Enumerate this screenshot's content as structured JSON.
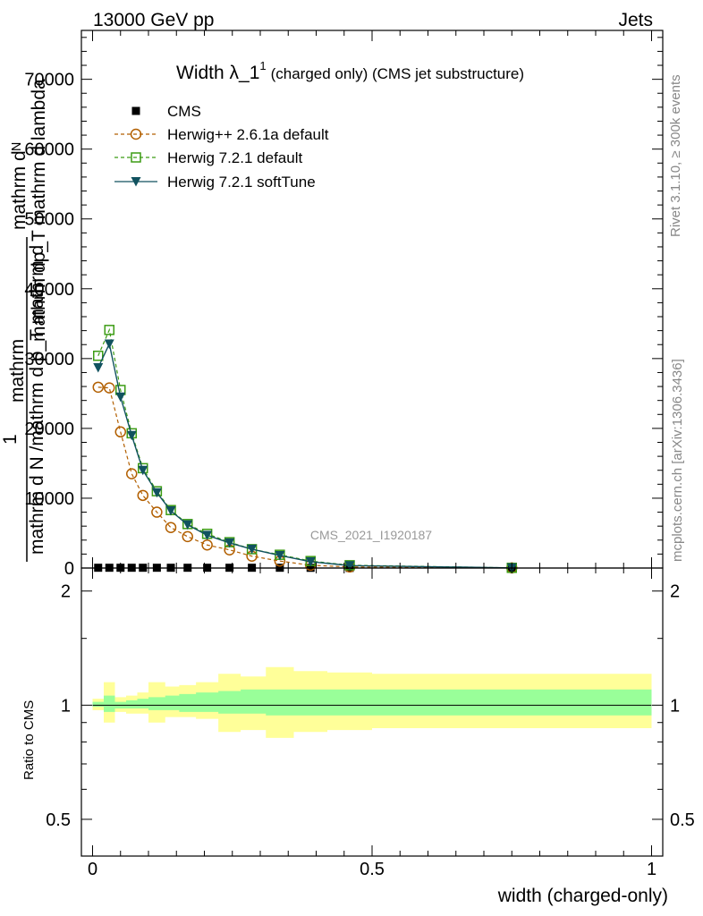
{
  "header": {
    "left": "13000 GeV pp",
    "right": "Jets"
  },
  "side_labels": {
    "rivet": "Rivet 3.1.10, ≥ 300k events",
    "mcplots": "mcplots.cern.ch [arXiv:1306.3436]"
  },
  "watermark": "CMS_2021_I1920187",
  "colors": {
    "cms": "#000000",
    "herwigpp": "#b25f00",
    "h721_default": "#3c9c14",
    "h721_soft": "#11525f",
    "band_inner": "#99ff99",
    "band_outer": "#ffff99"
  },
  "chart_data": [
    {
      "type": "line",
      "panel": "main",
      "title_main": "Width λ_1",
      "title_sup": "1",
      "title_rest": "(charged only) (CMS jet substructure)",
      "ylabel_top": "mathrm dᴺ",
      "ylabel_mid": "mathrm dp_T mathrm d lambda",
      "ylabel_bottom": "mathrm d N /mathrm d p_T mathrm d",
      "ylabel_one": "1",
      "ylabel_mathrm": "mathrm",
      "ylim": [
        0,
        77000
      ],
      "yticks": [
        0,
        10000,
        20000,
        30000,
        40000,
        50000,
        60000,
        70000
      ],
      "ytick_labels": [
        "0",
        "10000",
        "20000",
        "30000",
        "40000",
        "50000",
        "60000",
        "70000"
      ],
      "xlim": [
        -0.02,
        1.02
      ],
      "legend": [
        "CMS",
        "Herwig++ 2.6.1a default",
        "Herwig 7.2.1 default",
        "Herwig 7.2.1 softTune"
      ],
      "series": [
        {
          "name": "CMS",
          "marker": "square-filled",
          "x": [
            0.01,
            0.03,
            0.05,
            0.07,
            0.09,
            0.115,
            0.14,
            0.17,
            0.205,
            0.245,
            0.285,
            0.335,
            0.39,
            0.46,
            0.75
          ],
          "values": [
            40,
            40,
            40,
            40,
            40,
            40,
            40,
            40,
            40,
            40,
            40,
            40,
            30,
            20,
            5
          ]
        },
        {
          "name": "Herwig++ 2.6.1a default",
          "marker": "circle-open",
          "x": [
            0.01,
            0.03,
            0.05,
            0.07,
            0.09,
            0.115,
            0.14,
            0.17,
            0.205,
            0.245,
            0.285,
            0.335,
            0.39,
            0.46,
            0.75
          ],
          "values": [
            25900,
            25800,
            19500,
            13500,
            10400,
            8000,
            5800,
            4500,
            3300,
            2600,
            1700,
            1000,
            400,
            150,
            20
          ]
        },
        {
          "name": "Herwig 7.2.1 default",
          "marker": "square-open",
          "x": [
            0.01,
            0.03,
            0.05,
            0.07,
            0.09,
            0.115,
            0.14,
            0.17,
            0.205,
            0.245,
            0.285,
            0.335,
            0.39,
            0.46,
            0.75
          ],
          "values": [
            30400,
            34100,
            25500,
            19300,
            14300,
            11000,
            8300,
            6300,
            4900,
            3700,
            2700,
            1900,
            1000,
            400,
            30
          ]
        },
        {
          "name": "Herwig 7.2.1 softTune",
          "marker": "triangle-down-filled",
          "x": [
            0.01,
            0.03,
            0.05,
            0.07,
            0.09,
            0.115,
            0.14,
            0.17,
            0.205,
            0.245,
            0.285,
            0.335,
            0.39,
            0.46,
            0.75
          ],
          "values": [
            28700,
            32100,
            24500,
            19000,
            14000,
            10800,
            8200,
            6200,
            4700,
            3600,
            2700,
            1800,
            900,
            350,
            30
          ]
        }
      ]
    },
    {
      "type": "area",
      "panel": "ratio",
      "ylabel": "Ratio to CMS",
      "xlabel": "width (charged-only)",
      "ylim": [
        0.4,
        2.3
      ],
      "log_y": true,
      "xlim": [
        -0.02,
        1.02
      ],
      "yticks": [
        0.5,
        1,
        2
      ],
      "ytick_labels": [
        "0.5",
        "1",
        "2"
      ],
      "xticks": [
        0,
        0.5,
        1
      ],
      "xtick_labels": [
        "0",
        "0.5",
        "1"
      ],
      "reference": 1,
      "bins": [
        0,
        0.02,
        0.04,
        0.06,
        0.08,
        0.1,
        0.13,
        0.155,
        0.185,
        0.225,
        0.265,
        0.31,
        0.36,
        0.42,
        0.5,
        1.0
      ],
      "inner_lo": [
        0.99,
        0.96,
        0.98,
        0.98,
        0.98,
        0.97,
        0.97,
        0.96,
        0.96,
        0.95,
        0.95,
        0.94,
        0.94,
        0.94,
        0.94
      ],
      "inner_hi": [
        1.02,
        1.06,
        1.02,
        1.03,
        1.04,
        1.05,
        1.06,
        1.07,
        1.08,
        1.09,
        1.1,
        1.1,
        1.1,
        1.1,
        1.1
      ],
      "outer_lo": [
        0.97,
        0.9,
        0.96,
        0.95,
        0.95,
        0.9,
        0.93,
        0.93,
        0.92,
        0.85,
        0.86,
        0.82,
        0.85,
        0.86,
        0.87
      ],
      "outer_hi": [
        1.04,
        1.15,
        1.05,
        1.06,
        1.08,
        1.15,
        1.12,
        1.13,
        1.15,
        1.21,
        1.19,
        1.26,
        1.23,
        1.22,
        1.21
      ]
    }
  ]
}
